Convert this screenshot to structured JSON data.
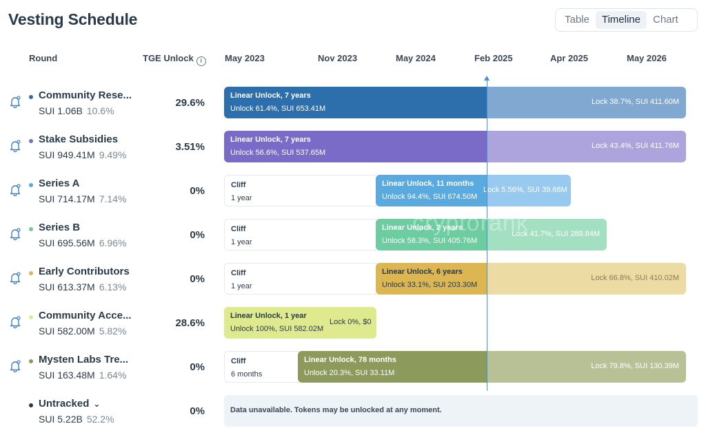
{
  "page": {
    "title": "Vesting Schedule"
  },
  "views": [
    {
      "label": "Table",
      "active": false
    },
    {
      "label": "Timeline",
      "active": true
    },
    {
      "label": "Chart",
      "active": false
    }
  ],
  "columns": {
    "round": "Round",
    "tge": "TGE Unlock"
  },
  "timeline_dates": [
    "May 2023",
    "Nov 2023",
    "May 2024",
    "Feb 2025",
    "Apr 2025",
    "May 2026"
  ],
  "watermark": "cryptorank",
  "colors": {
    "community_reserve": "#2d6fad",
    "stake_subsidies": "#7a6bc8",
    "series_a": "#5aaae0",
    "series_b": "#6dcca0",
    "early_contributors": "#dcb653",
    "community_access": "#dfe98d",
    "mysten_labs": "#8c9a5b",
    "untracked": "#2a3a4a",
    "now_line": "#4a8fd0"
  },
  "rounds": [
    {
      "name": "Community Rese...",
      "amount": "SUI 1.06B",
      "pct": "10.6%",
      "tge": "29.6%",
      "unlock_title": "Linear Unlock, 7 years",
      "unlock_detail": "Unlock 61.4%, SUI 653.41M",
      "lock_detail": "Lock 38.7%, SUI 411.60M"
    },
    {
      "name": "Stake Subsidies",
      "amount": "SUI 949.41M",
      "pct": "9.49%",
      "tge": "3.51%",
      "unlock_title": "Linear Unlock, 7 years",
      "unlock_detail": "Unlock 56.6%, SUI 537.65M",
      "lock_detail": "Lock 43.4%, SUI 411.76M"
    },
    {
      "name": "Series A",
      "amount": "SUI 714.17M",
      "pct": "7.14%",
      "tge": "0%",
      "cliff_title": "Cliff",
      "cliff_duration": "1 year",
      "unlock_title": "Linear Unlock, 11 months",
      "unlock_detail": "Unlock 94.4%, SUI 674.50M",
      "lock_detail": "Lock 5.56%, SUI 39.68M"
    },
    {
      "name": "Series B",
      "amount": "SUI 695.56M",
      "pct": "6.96%",
      "tge": "0%",
      "cliff_title": "Cliff",
      "cliff_duration": "1 year",
      "unlock_title": "Linear Unlock, 2 years",
      "unlock_detail": "Unlock 58.3%, SUI 405.76M",
      "lock_detail": "Lock 41.7%, SUI 289.84M"
    },
    {
      "name": "Early Contributors",
      "amount": "SUI 613.37M",
      "pct": "6.13%",
      "tge": "0%",
      "cliff_title": "Cliff",
      "cliff_duration": "1 year",
      "unlock_title": "Linear Unlock, 6 years",
      "unlock_detail": "Unlock 33.1%, SUI 203.30M",
      "lock_detail": "Lock 66.8%, SUI 410.02M"
    },
    {
      "name": "Community Acce...",
      "amount": "SUI 582.00M",
      "pct": "5.82%",
      "tge": "28.6%",
      "unlock_title": "Linear Unlock, 1 year",
      "unlock_detail": "Unlock 100%, SUI 582.02M",
      "lock_detail": "Lock 0%, $0"
    },
    {
      "name": "Mysten Labs Tre...",
      "amount": "SUI 163.48M",
      "pct": "1.64%",
      "tge": "0%",
      "cliff_title": "Cliff",
      "cliff_duration": "6 months",
      "unlock_title": "Linear Unlock, 78 months",
      "unlock_detail": "Unlock 20.3%, SUI 33.11M",
      "lock_detail": "Lock 79.8%, SUI 130.39M"
    },
    {
      "name": "Untracked",
      "amount": "SUI 5.22B",
      "pct": "52.2%",
      "tge": "0%",
      "note": "Data unavailable. Tokens may be unlocked at any moment."
    }
  ]
}
